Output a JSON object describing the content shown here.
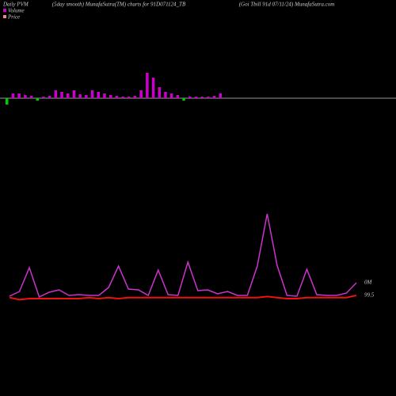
{
  "chart_data": {
    "type": "pvm",
    "title": "Daily PVM",
    "subtitle": "(5day smooth) MunafaSutra(TM) charts for 91D071124_TB",
    "source": "(Goi Tbill 91d 07/11/24) MunafaSutra.com",
    "volume": {
      "name": "Volume",
      "color": "#cc00cc",
      "values": [
        8,
        6,
        6,
        4,
        3,
        3,
        2,
        3,
        10,
        8,
        6,
        10,
        5,
        4,
        10,
        8,
        6,
        4,
        3,
        2,
        2,
        3,
        10,
        32,
        26,
        14,
        8,
        6,
        4,
        3,
        2,
        2,
        2,
        2,
        3,
        6
      ],
      "bar_colors": [
        "#00cc00",
        "#cc00cc",
        "#cc00cc",
        "#cc00cc",
        "#cc00cc",
        "#00cc00",
        "#cc00cc",
        "#cc00cc",
        "#cc00cc",
        "#cc00cc",
        "#cc00cc",
        "#cc00cc",
        "#cc00cc",
        "#cc00cc",
        "#cc00cc",
        "#cc00cc",
        "#cc00cc",
        "#cc00cc",
        "#cc00cc",
        "#cc00cc",
        "#cc00cc",
        "#cc00cc",
        "#cc00cc",
        "#cc00cc",
        "#cc00cc",
        "#cc00cc",
        "#cc00cc",
        "#cc00cc",
        "#cc00cc",
        "#00cc00",
        "#cc00cc",
        "#cc00cc",
        "#cc00cc",
        "#cc00cc",
        "#cc00cc",
        "#cc00cc"
      ],
      "ylim": [
        0,
        40
      ]
    },
    "pvm": {
      "color": "#cc33cc",
      "end_label": "0M",
      "values": [
        26,
        32,
        62,
        25,
        31,
        34,
        27,
        28,
        27,
        27,
        37,
        64,
        35,
        34,
        27,
        59,
        28,
        27,
        69,
        33,
        34,
        29,
        32,
        27,
        27,
        64,
        130,
        65,
        27,
        26,
        60,
        28,
        27,
        27,
        30,
        43
      ],
      "ylim": [
        0,
        140
      ]
    },
    "price": {
      "name": "Price",
      "color": "#ee1111",
      "values": [
        99.48,
        99.46,
        99.47,
        99.47,
        99.47,
        99.47,
        99.47,
        99.47,
        99.48,
        99.47,
        99.48,
        99.47,
        99.48,
        99.48,
        99.48,
        99.48,
        99.48,
        99.48,
        99.48,
        99.48,
        99.48,
        99.48,
        99.48,
        99.48,
        99.48,
        99.48,
        99.49,
        99.48,
        99.47,
        99.47,
        99.48,
        99.48,
        99.48,
        99.48,
        99.48,
        99.5
      ],
      "ylim": [
        99.3,
        99.6
      ]
    }
  }
}
